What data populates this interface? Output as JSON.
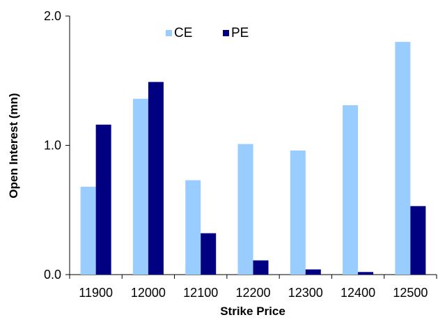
{
  "chart_data": {
    "type": "bar",
    "categories": [
      "11900",
      "12000",
      "12100",
      "12200",
      "12300",
      "12400",
      "12500"
    ],
    "series": [
      {
        "name": "CE",
        "color": "#99ccff",
        "values": [
          0.68,
          1.36,
          0.73,
          1.01,
          0.96,
          1.31,
          1.8
        ]
      },
      {
        "name": "PE",
        "color": "#000080",
        "values": [
          1.16,
          1.49,
          0.32,
          0.11,
          0.04,
          0.02,
          0.53
        ]
      }
    ],
    "title": "",
    "xlabel": "Strike Price",
    "ylabel": "Open Interest (mn)",
    "ylim": [
      0,
      2.0
    ],
    "yticks": [
      "0.0",
      "1.0",
      "2.0"
    ],
    "yticks_values": [
      0,
      1.0,
      2.0
    ],
    "grid": false,
    "legend": "top-center"
  }
}
